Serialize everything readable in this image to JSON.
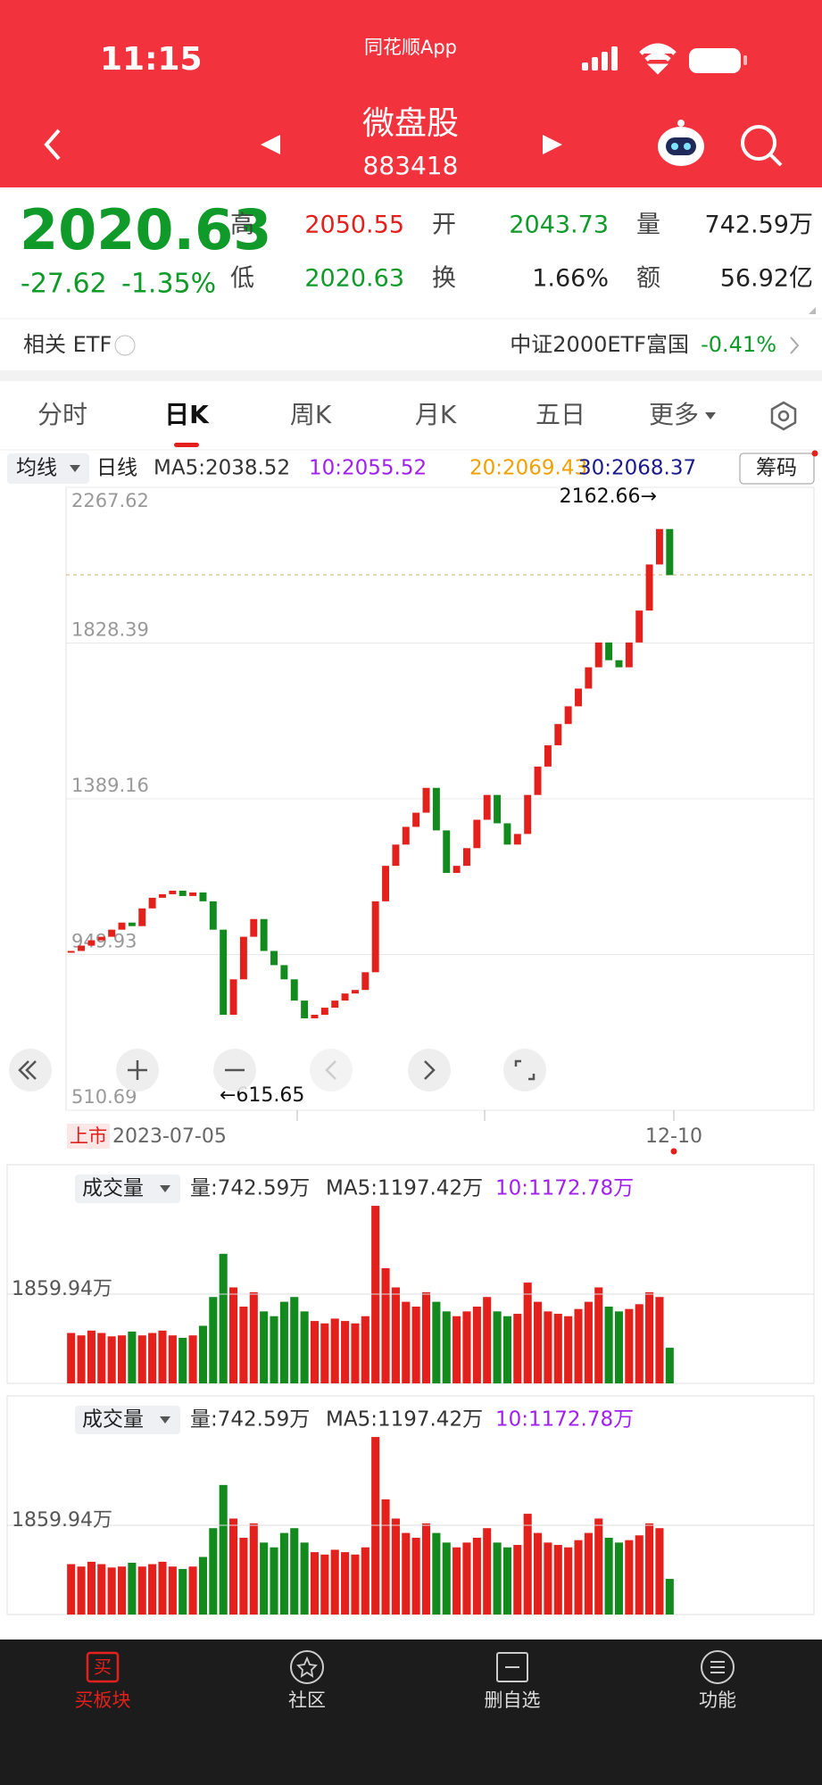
{
  "status_bar": {
    "time": "11:15",
    "app": "同花顺App"
  },
  "header": {
    "title": "微盘股",
    "code": "883418"
  },
  "quote": {
    "price": "2020.63",
    "change": "-27.62",
    "change_pct": "-1.35%",
    "high_label": "高",
    "high": "2050.55",
    "open_label": "开",
    "open": "2043.73",
    "volume_label": "量",
    "volume": "742.59万",
    "low_label": "低",
    "low": "2020.63",
    "turnover_label": "换",
    "turnover": "1.66%",
    "amount_label": "额",
    "amount": "56.92亿"
  },
  "etf": {
    "label": "相关 ETF",
    "name": "中证2000ETF富国",
    "change": "-0.41%"
  },
  "tabs": [
    "分时",
    "日K",
    "周K",
    "月K",
    "五日",
    "更多"
  ],
  "ma_bar": {
    "selector": "均线",
    "kind": "日线",
    "ma5": "MA5:2038.52",
    "ma10": "10:2055.52",
    "ma20": "20:2069.43",
    "ma30": "30:2068.37",
    "button": "筹码"
  },
  "chart_data": {
    "type": "candlestick",
    "closes": [
      960,
      975,
      990,
      1000,
      1020,
      1040,
      1030,
      1080,
      1110,
      1120,
      1130,
      1115,
      1125,
      1100,
      1020,
      780,
      880,
      1000,
      1050,
      960,
      920,
      880,
      820,
      770,
      780,
      800,
      820,
      840,
      850,
      900,
      1100,
      1200,
      1260,
      1310,
      1350,
      1420,
      1300,
      1180,
      1200,
      1250,
      1330,
      1400,
      1320,
      1260,
      1290,
      1400,
      1480,
      1540,
      1600,
      1650,
      1700,
      1760,
      1830,
      1780,
      1760,
      1830,
      1920,
      2050,
      2150,
      2020
    ],
    "ylim": [
      510.69,
      2267.62
    ],
    "yticks": [
      2267.62,
      1828.39,
      1389.16,
      949.93,
      510.69
    ],
    "current_price": 2020.63,
    "up_color": "#e3201b",
    "down_color": "#138a1e",
    "annotations": [
      "2162.66→",
      "←615.65"
    ],
    "x_labels": {
      "listing": "上市",
      "start": "2023-07-05",
      "end": "12-10"
    }
  },
  "volume": {
    "type": "bar",
    "selector": "成交量",
    "vol": "量:742.59万",
    "ma5": "MA5:1197.42万",
    "ma10": "10:1172.78万",
    "values": [
      1050,
      1000,
      1100,
      1050,
      980,
      1000,
      1080,
      1000,
      1050,
      1100,
      1000,
      950,
      1000,
      1200,
      1800,
      2700,
      2000,
      1600,
      1900,
      1500,
      1400,
      1700,
      1800,
      1500,
      1300,
      1250,
      1350,
      1300,
      1250,
      1400,
      3700,
      2400,
      2000,
      1700,
      1600,
      1900,
      1700,
      1500,
      1400,
      1500,
      1600,
      1800,
      1500,
      1400,
      1450,
      2100,
      1700,
      1500,
      1450,
      1400,
      1550,
      1700,
      2000,
      1600,
      1500,
      1550,
      1650,
      1900,
      1800,
      742.59
    ],
    "ylim": [
      0,
      3719.88
    ],
    "yticks": [
      {
        "value": 1859.94,
        "label": "1859.94万"
      }
    ]
  },
  "bottom_nav": {
    "buy_icon": "买",
    "items": [
      "买板块",
      "社区",
      "删自选",
      "功能"
    ]
  }
}
